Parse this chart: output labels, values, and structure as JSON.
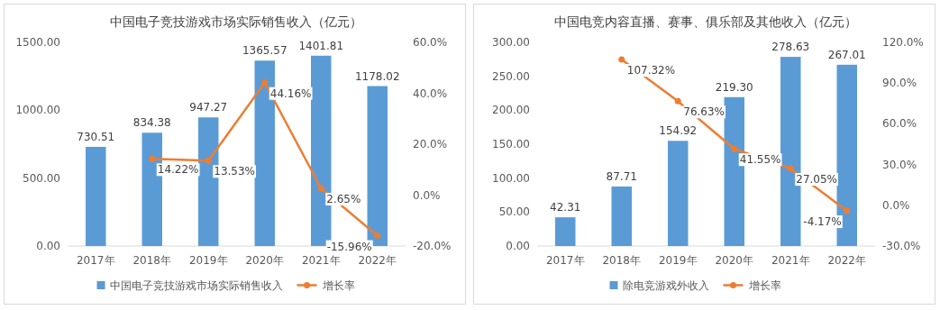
{
  "chart_data": [
    {
      "type": "bar",
      "title": "中国电子竞技游戏市场实际销售收入（亿元）",
      "categories": [
        "2017年",
        "2018年",
        "2019年",
        "2020年",
        "2021年",
        "2022年"
      ],
      "ylim": [
        0,
        1500
      ],
      "yticks": [
        {
          "value": 0,
          "label": "0.00"
        },
        {
          "value": 500,
          "label": "500.00"
        },
        {
          "value": 1000,
          "label": "1000.00"
        },
        {
          "value": 1500,
          "label": "1500.00"
        }
      ],
      "y2lim": [
        -20,
        60
      ],
      "y2ticks": [
        {
          "value": -20,
          "label": "-20.0%"
        },
        {
          "value": 0,
          "label": "0.0%"
        },
        {
          "value": 20,
          "label": "20.0%"
        },
        {
          "value": 40,
          "label": "40.0%"
        },
        {
          "value": 60,
          "label": "60.0%"
        }
      ],
      "legend": "bottom",
      "marker": "circle",
      "series": [
        {
          "name": "中国电子竞技游戏市场实际销售收入",
          "color": "#5b9bd5",
          "values": [
            730.51,
            834.38,
            947.27,
            1365.57,
            1401.81,
            1178.02
          ],
          "value_labels": [
            "730.51",
            "834.38",
            "947.27",
            "1365.57",
            "1401.81",
            "1178.02"
          ]
        },
        {
          "type": "line",
          "name": "增长率",
          "color": "#ed7d31",
          "axis": "y2",
          "values": [
            null,
            14.22,
            13.53,
            44.16,
            2.65,
            -15.96
          ],
          "value_labels": [
            null,
            "14.22%",
            "13.53%",
            "44.16%",
            "2.65%",
            "-15.96%"
          ]
        }
      ]
    },
    {
      "type": "bar",
      "title": "中国电竞内容直播、赛事、俱乐部及其他收入（亿元）",
      "categories": [
        "2017年",
        "2018年",
        "2019年",
        "2020年",
        "2021年",
        "2022年"
      ],
      "ylim": [
        0,
        300
      ],
      "yticks": [
        {
          "value": 0,
          "label": "0.00"
        },
        {
          "value": 50,
          "label": "50.00"
        },
        {
          "value": 100,
          "label": "100.00"
        },
        {
          "value": 150,
          "label": "150.00"
        },
        {
          "value": 200,
          "label": "200.00"
        },
        {
          "value": 250,
          "label": "250.00"
        },
        {
          "value": 300,
          "label": "300.00"
        }
      ],
      "y2lim": [
        -30,
        120
      ],
      "y2ticks": [
        {
          "value": -30,
          "label": "-30.0%"
        },
        {
          "value": 0,
          "label": "0.0%"
        },
        {
          "value": 30,
          "label": "30.0%"
        },
        {
          "value": 60,
          "label": "60.0%"
        },
        {
          "value": 90,
          "label": "90.0%"
        },
        {
          "value": 120,
          "label": "120.0%"
        }
      ],
      "legend": "bottom",
      "marker": "circle",
      "series": [
        {
          "name": "除电竞游戏外收入",
          "color": "#5b9bd5",
          "values": [
            42.31,
            87.71,
            154.92,
            219.3,
            278.63,
            267.01
          ],
          "value_labels": [
            "42.31",
            "87.71",
            "154.92",
            "219.30",
            "278.63",
            "267.01"
          ]
        },
        {
          "type": "line",
          "name": "增长率",
          "color": "#ed7d31",
          "axis": "y2",
          "values": [
            null,
            107.32,
            76.63,
            41.55,
            27.05,
            -4.17
          ],
          "value_labels": [
            null,
            "107.32%",
            "76.63%",
            "41.55%",
            "27.05%",
            "-4.17%"
          ]
        }
      ]
    }
  ]
}
